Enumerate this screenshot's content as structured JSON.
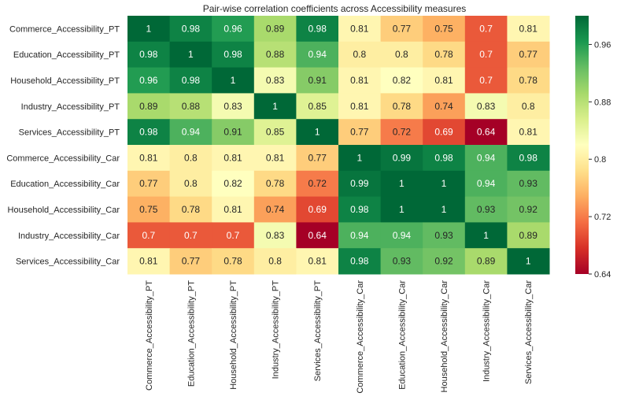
{
  "chart_data": {
    "type": "heatmap",
    "title": "Pair-wise correlation coefficients across Accessibility measures",
    "xlabel": "",
    "ylabel": "",
    "row_labels": [
      "Commerce_Accessibility_PT",
      "Education_Accessibility_PT",
      "Household_Accessibility_PT",
      "Industry_Accessibility_PT",
      "Services_Accessibility_PT",
      "Commerce_Accessibility_Car",
      "Education_Accessibility_Car",
      "Household_Accessibility_Car",
      "Industry_Accessibility_Car",
      "Services_Accessibility_Car"
    ],
    "column_labels": [
      "Commerce_Accessibility_PT",
      "Education_Accessibility_PT",
      "Household_Accessibility_PT",
      "Industry_Accessibility_PT",
      "Services_Accessibility_PT",
      "Commerce_Accessibility_Car",
      "Education_Accessibility_Car",
      "Household_Accessibility_Car",
      "Industry_Accessibility_Car",
      "Services_Accessibility_Car"
    ],
    "values": [
      [
        1,
        0.98,
        0.96,
        0.89,
        0.98,
        0.81,
        0.77,
        0.75,
        0.7,
        0.81
      ],
      [
        0.98,
        1,
        0.98,
        0.88,
        0.94,
        0.8,
        0.8,
        0.78,
        0.7,
        0.77
      ],
      [
        0.96,
        0.98,
        1,
        0.83,
        0.91,
        0.81,
        0.82,
        0.81,
        0.7,
        0.78
      ],
      [
        0.89,
        0.88,
        0.83,
        1,
        0.85,
        0.81,
        0.78,
        0.74,
        0.83,
        0.8
      ],
      [
        0.98,
        0.94,
        0.91,
        0.85,
        1,
        0.77,
        0.72,
        0.69,
        0.64,
        0.81
      ],
      [
        0.81,
        0.8,
        0.81,
        0.81,
        0.77,
        1,
        0.99,
        0.98,
        0.94,
        0.98
      ],
      [
        0.77,
        0.8,
        0.82,
        0.78,
        0.72,
        0.99,
        1,
        1,
        0.94,
        0.93
      ],
      [
        0.75,
        0.78,
        0.81,
        0.74,
        0.69,
        0.98,
        1,
        1,
        0.93,
        0.92
      ],
      [
        0.7,
        0.7,
        0.7,
        0.83,
        0.64,
        0.94,
        0.94,
        0.93,
        1,
        0.89
      ],
      [
        0.81,
        0.77,
        0.78,
        0.8,
        0.81,
        0.98,
        0.93,
        0.92,
        0.89,
        1
      ]
    ],
    "color_range": [
      0.64,
      1.0
    ],
    "colorbar_ticks": [
      0.64,
      0.72,
      0.8,
      0.88,
      0.96
    ],
    "colormap": "RdYlGn",
    "grid": false
  }
}
